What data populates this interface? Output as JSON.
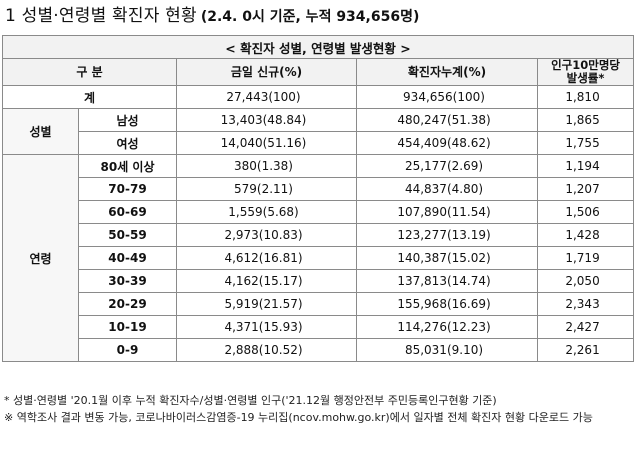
{
  "heading": {
    "main": "1 성별·연령별 확진자 현황",
    "sub": "(2.4. 0시 기준, 누적 934,656명)"
  },
  "table": {
    "caption": "< 확진자 성별, 연령별 발생현황 >",
    "headers": {
      "category": "구 분",
      "new_today": "금일 신규(%)",
      "cumulative": "확진자누계(%)",
      "rate_line1": "인구10만명당",
      "rate_line2": "발생률*"
    },
    "total": {
      "label": "계",
      "new_today": "27,443(100)",
      "cumulative": "934,656(100)",
      "rate": "1,810"
    },
    "gender": {
      "label": "성별",
      "rows": [
        {
          "label": "남성",
          "new_today": "13,403(48.84)",
          "cumulative": "480,247(51.38)",
          "rate": "1,865"
        },
        {
          "label": "여성",
          "new_today": "14,040(51.16)",
          "cumulative": "454,409(48.62)",
          "rate": "1,755"
        }
      ]
    },
    "age": {
      "label": "연령",
      "rows": [
        {
          "label": "80세 이상",
          "new_today": "380(1.38)",
          "cumulative": "25,177(2.69)",
          "rate": "1,194"
        },
        {
          "label": "70-79",
          "new_today": "579(2.11)",
          "cumulative": "44,837(4.80)",
          "rate": "1,207"
        },
        {
          "label": "60-69",
          "new_today": "1,559(5.68)",
          "cumulative": "107,890(11.54)",
          "rate": "1,506"
        },
        {
          "label": "50-59",
          "new_today": "2,973(10.83)",
          "cumulative": "123,277(13.19)",
          "rate": "1,428"
        },
        {
          "label": "40-49",
          "new_today": "4,612(16.81)",
          "cumulative": "140,387(15.02)",
          "rate": "1,719"
        },
        {
          "label": "30-39",
          "new_today": "4,162(15.17)",
          "cumulative": "137,813(14.74)",
          "rate": "2,050"
        },
        {
          "label": "20-29",
          "new_today": "5,919(21.57)",
          "cumulative": "155,968(16.69)",
          "rate": "2,343"
        },
        {
          "label": "10-19",
          "new_today": "4,371(15.93)",
          "cumulative": "114,276(12.23)",
          "rate": "2,427"
        },
        {
          "label": "0-9",
          "new_today": "2,888(10.52)",
          "cumulative": "85,031(9.10)",
          "rate": "2,261"
        }
      ]
    }
  },
  "footnotes": [
    "* 성별·연령별 '20.1월 이후 누적 확진자수/성별·연령별 인구('21.12월 행정안전부 주민등록인구현황 기준)",
    "※ 역학조사 결과 변동 가능, 코로나바이러스감염증-19 누리집(ncov.mohw.go.kr)에서 일자별 전체 확진자 현황 다운로드 가능"
  ]
}
